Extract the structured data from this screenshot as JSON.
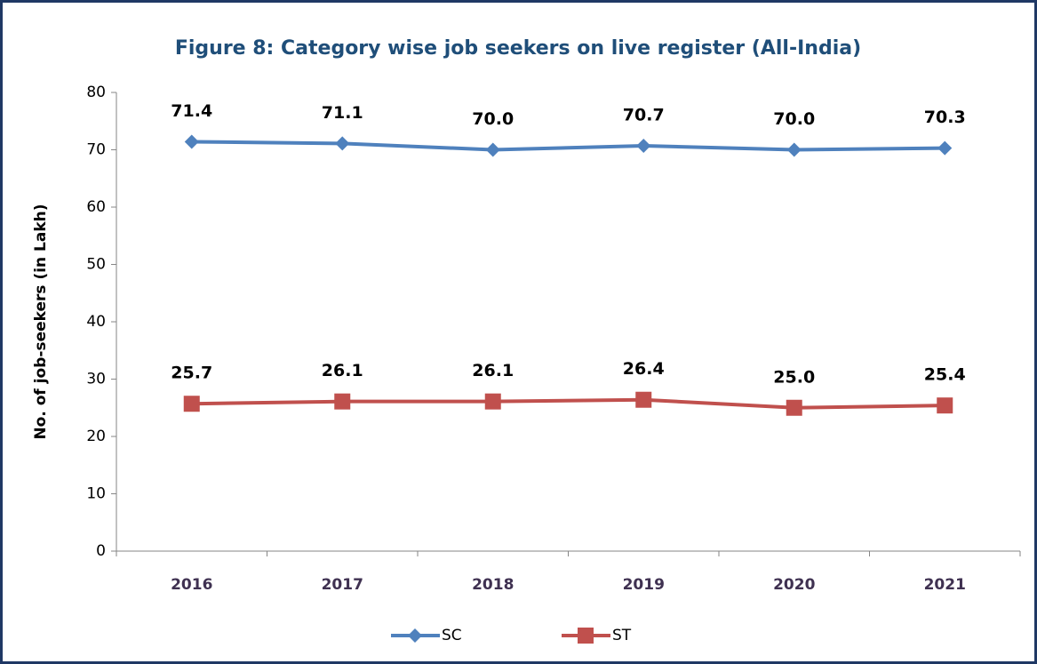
{
  "chart_data": {
    "type": "line",
    "title": "Figure 8: Category wise job seekers on live register (All-India)",
    "ylabel": "No. of job-seekers (in Lakh)",
    "categories": [
      "2016",
      "2017",
      "2018",
      "2019",
      "2020",
      "2021"
    ],
    "series": [
      {
        "name": "SC",
        "color": "#4f81bd",
        "marker": "diamond",
        "values": [
          71.4,
          71.1,
          70,
          70.7,
          70,
          70.3
        ],
        "value_labels": [
          "71.4",
          "71.1",
          "70.0",
          "70.7",
          "70.0",
          "70.3"
        ]
      },
      {
        "name": "ST",
        "color": "#c0504d",
        "marker": "square",
        "values": [
          25.7,
          26.1,
          26.1,
          26.4,
          25,
          25.4
        ],
        "value_labels": [
          "25.7",
          "26.1",
          "26.1",
          "26.4",
          "25.0",
          "25.4"
        ]
      }
    ],
    "ylim": [
      0,
      80
    ],
    "yticks": [
      0,
      10,
      20,
      30,
      40,
      50,
      60,
      70,
      80
    ],
    "grid": false,
    "legend": "bottom"
  }
}
